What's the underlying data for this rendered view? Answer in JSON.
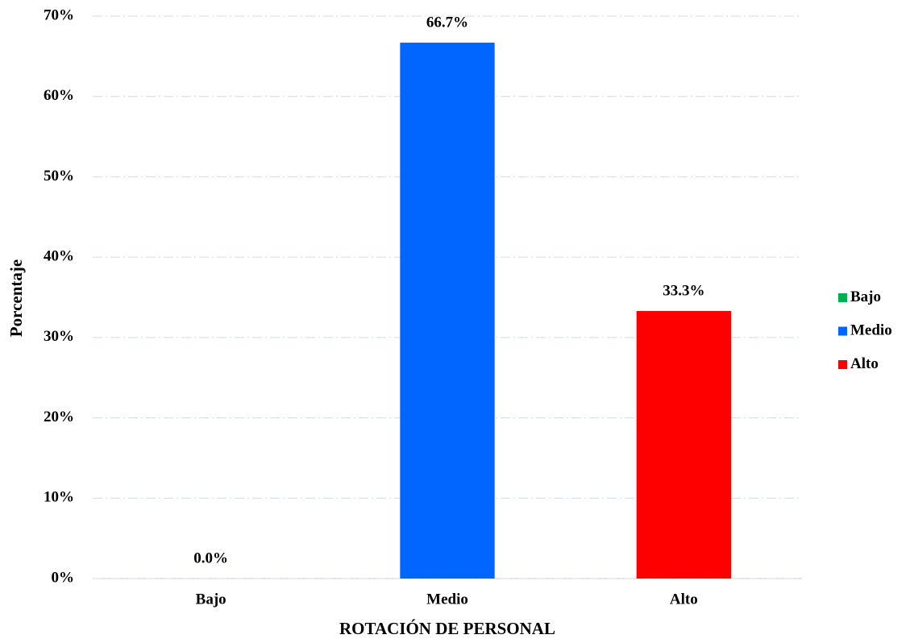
{
  "chart_data": {
    "type": "bar",
    "x_label": "ROTACIÓN DE PERSONAL",
    "y_label": "Porcentaje",
    "categories": [
      "Bajo",
      "Medio",
      "Alto"
    ],
    "values": [
      0,
      66.7,
      33.3
    ],
    "value_labels": [
      "0.0%",
      "66.7%",
      "33.3%"
    ],
    "colors": [
      "#00b050",
      "#0066ff",
      "#ff0000"
    ],
    "ylim": [
      0,
      70
    ],
    "yticks": [
      {
        "value": 0,
        "label": "0%"
      },
      {
        "value": 10,
        "label": "10%"
      },
      {
        "value": 20,
        "label": "20%"
      },
      {
        "value": 30,
        "label": "30%"
      },
      {
        "value": 40,
        "label": "40%"
      },
      {
        "value": 50,
        "label": "50%"
      },
      {
        "value": 60,
        "label": "60%"
      },
      {
        "value": 70,
        "label": "70%"
      }
    ],
    "grid": true,
    "legend": "right"
  }
}
